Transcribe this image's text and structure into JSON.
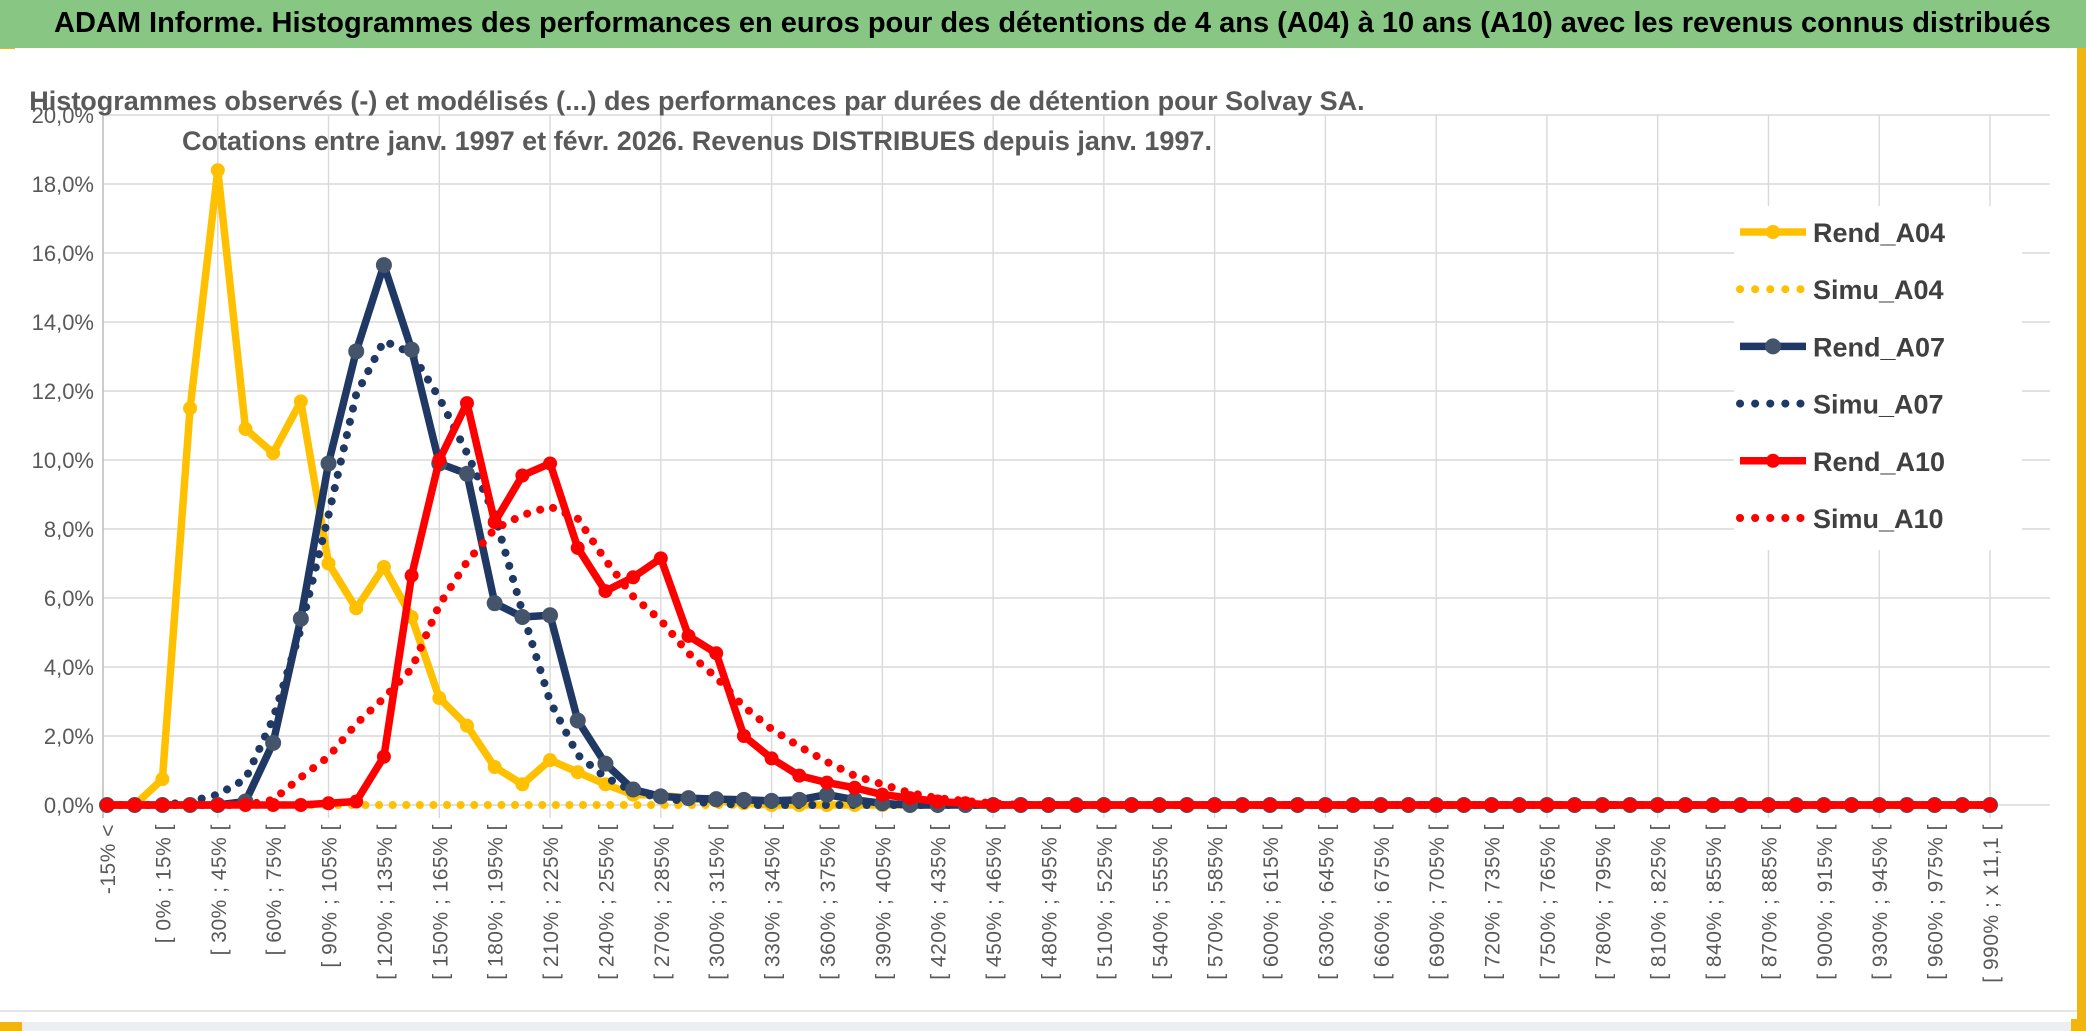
{
  "banner": {
    "title": "ADAM Informe. Histogrammes des performances en euros pour des détentions de 4 ans (A04) à 10 ans (A10) avec les revenus connus distribués",
    "bg_color": "#87C783"
  },
  "colors": {
    "gold": "#FFC000",
    "navy": "#1F3864",
    "navy_marker": "#44546A",
    "red": "#FF0000",
    "grid": "#D9D9D9",
    "axis": "#BFBFBF",
    "text_grey": "#595959",
    "legend_text": "#404040",
    "accent_gold": "#F2B50D"
  },
  "chart_data": {
    "type": "line",
    "title_lines": [
      "Histogrammes observés (-) et modélisés (...) des performances par durées de détention pour Solvay SA.",
      "Cotations entre janv. 1997 et févr. 2026. Revenus DISTRIBUES depuis janv. 1997."
    ],
    "ylabel": "",
    "xlabel": "",
    "grid": true,
    "ylim": [
      0,
      20
    ],
    "y_axis": {
      "unit": "%",
      "step": 2,
      "labels": [
        "20,0%",
        "18,0%",
        "16,0%",
        "14,0%",
        "12,0%",
        "10,0%",
        "8,0%",
        "6,0%",
        "4,0%",
        "2,0%",
        "0,0%"
      ]
    },
    "x_axis": {
      "bins_total": 69,
      "labels_on_every_other_bin": true,
      "tick_labels": [
        "-15% <",
        "[ 0% ; 15% [",
        "[ 30% ; 45% [",
        "[ 60% ; 75% [",
        "[ 90% ; 105% [",
        "[ 120% ; 135% [",
        "[ 150% ; 165% [",
        "[ 180% ; 195% [",
        "[ 210% ; 225% [",
        "[ 240% ; 255% [",
        "[ 270% ; 285% [",
        "[ 300% ; 315% [",
        "[ 330% ; 345% [",
        "[ 360% ; 375% [",
        "[ 390% ; 405% [",
        "[ 420% ; 435% [",
        "[ 450% ; 465% [",
        "[ 480% ; 495% [",
        "[ 510% ; 525% [",
        "[ 540% ; 555% [",
        "[ 570% ; 585% [",
        "[ 600% ; 615% [",
        "[ 630% ; 645% [",
        "[ 660% ; 675% [",
        "[ 690% ; 705% [",
        "[ 720% ; 735% [",
        "[ 750% ; 765% [",
        "[ 780% ; 795% [",
        "[ 810% ; 825% [",
        "[ 840% ; 855% [",
        "[ 870% ; 885% [",
        "[ 900% ; 915% [",
        "[ 930% ; 945% [",
        "[ 960% ; 975% [",
        "[ 990% ; x 11,1 ["
      ]
    },
    "legend": {
      "position": "right",
      "entries": [
        "Rend_A04",
        "Simu_A04",
        "Rend_A07",
        "Simu_A07",
        "Rend_A10",
        "Simu_A10"
      ]
    },
    "series": [
      {
        "name": "Simu_A04",
        "style": "dotted",
        "color": "#FFC000",
        "values": [
          0,
          0,
          0,
          0,
          0,
          0,
          0,
          0,
          0,
          0,
          0,
          0,
          0,
          0,
          0,
          0,
          0,
          0,
          0,
          0,
          0,
          0,
          0,
          0,
          0,
          0,
          0,
          0,
          0,
          0,
          0,
          0,
          0,
          0,
          0,
          0,
          0,
          0,
          0,
          0,
          0,
          0,
          0,
          0,
          0,
          0,
          0,
          0,
          0,
          0,
          0,
          0,
          0,
          0,
          0,
          0,
          0,
          0,
          0,
          0,
          0,
          0,
          0,
          0,
          0,
          0,
          0,
          0,
          0
        ]
      },
      {
        "name": "Rend_A04",
        "style": "solid",
        "color": "#FFC000",
        "marker": "#FFC000",
        "values": [
          0,
          0,
          0.75,
          11.5,
          18.4,
          10.9,
          10.2,
          11.7,
          7,
          5.7,
          6.9,
          5.45,
          3.1,
          2.3,
          1.1,
          0.6,
          1.3,
          0.95,
          0.6,
          0.3,
          0.28,
          0.2,
          0.12,
          0.05,
          0,
          0,
          0,
          0,
          0,
          0,
          0,
          0,
          0,
          0,
          0,
          0,
          0,
          0,
          0,
          0,
          0,
          0,
          0,
          0,
          0,
          0,
          0,
          0,
          0,
          0,
          0,
          0,
          0,
          0,
          0,
          0,
          0,
          0,
          0,
          0,
          0,
          0,
          0,
          0,
          0,
          0,
          0,
          0,
          0
        ]
      },
      {
        "name": "Simu_A07",
        "style": "dotted",
        "color": "#1F3864",
        "values": [
          0,
          0,
          0,
          0.1,
          0.3,
          0.75,
          2.5,
          5.1,
          8.4,
          11.9,
          13.45,
          13.1,
          11.8,
          10.2,
          8.4,
          5.6,
          3,
          1.45,
          0.8,
          0.4,
          0.2,
          0.1,
          0.05,
          0,
          0,
          0,
          0,
          0,
          0,
          0,
          0,
          0,
          0,
          0,
          0,
          0,
          0,
          0,
          0,
          0,
          0,
          0,
          0,
          0,
          0,
          0,
          0,
          0,
          0,
          0,
          0,
          0,
          0,
          0,
          0,
          0,
          0,
          0,
          0,
          0,
          0,
          0,
          0,
          0,
          0,
          0,
          0,
          0,
          0
        ]
      },
      {
        "name": "Rend_A07",
        "style": "solid",
        "color": "#1F3864",
        "marker": "#44546A",
        "values": [
          0,
          0,
          0,
          0,
          0,
          0.1,
          1.8,
          5.4,
          9.9,
          13.15,
          15.65,
          13.2,
          9.9,
          9.6,
          5.85,
          5.45,
          5.5,
          2.45,
          1.2,
          0.45,
          0.25,
          0.2,
          0.17,
          0.15,
          0.12,
          0.15,
          0.3,
          0.15,
          0.05,
          0,
          0,
          0,
          0,
          0,
          0,
          0,
          0,
          0,
          0,
          0,
          0,
          0,
          0,
          0,
          0,
          0,
          0,
          0,
          0,
          0,
          0,
          0,
          0,
          0,
          0,
          0,
          0,
          0,
          0,
          0,
          0,
          0,
          0,
          0,
          0,
          0,
          0,
          0,
          0
        ]
      },
      {
        "name": "Simu_A10",
        "style": "dotted",
        "color": "#FF0000",
        "values": [
          0,
          0,
          0,
          0,
          0,
          0,
          0.15,
          0.8,
          1.4,
          2.35,
          3.1,
          3.95,
          5.8,
          7.05,
          8,
          8.4,
          8.65,
          8.3,
          7.1,
          6.05,
          5.35,
          4.4,
          3.7,
          2.85,
          2.2,
          1.7,
          1.25,
          0.85,
          0.6,
          0.35,
          0.2,
          0.12,
          0.05,
          0,
          0,
          0,
          0,
          0,
          0,
          0,
          0,
          0,
          0,
          0,
          0,
          0,
          0,
          0,
          0,
          0,
          0,
          0,
          0,
          0,
          0,
          0,
          0,
          0,
          0,
          0,
          0,
          0,
          0,
          0,
          0,
          0,
          0,
          0,
          0
        ]
      },
      {
        "name": "Rend_A10",
        "style": "solid",
        "color": "#FF0000",
        "marker": "#FF0000",
        "values": [
          0,
          0,
          0,
          0,
          0,
          0,
          0,
          0,
          0.05,
          0.1,
          1.4,
          6.65,
          10,
          11.65,
          8.2,
          9.55,
          9.9,
          7.45,
          6.2,
          6.6,
          7.15,
          4.9,
          4.4,
          2,
          1.35,
          0.85,
          0.65,
          0.5,
          0.3,
          0.2,
          0.1,
          0.05,
          0,
          0,
          0,
          0,
          0,
          0,
          0,
          0,
          0,
          0,
          0,
          0,
          0,
          0,
          0,
          0,
          0,
          0,
          0,
          0,
          0,
          0,
          0,
          0,
          0,
          0,
          0,
          0,
          0,
          0,
          0,
          0,
          0,
          0,
          0,
          0,
          0
        ]
      }
    ]
  }
}
